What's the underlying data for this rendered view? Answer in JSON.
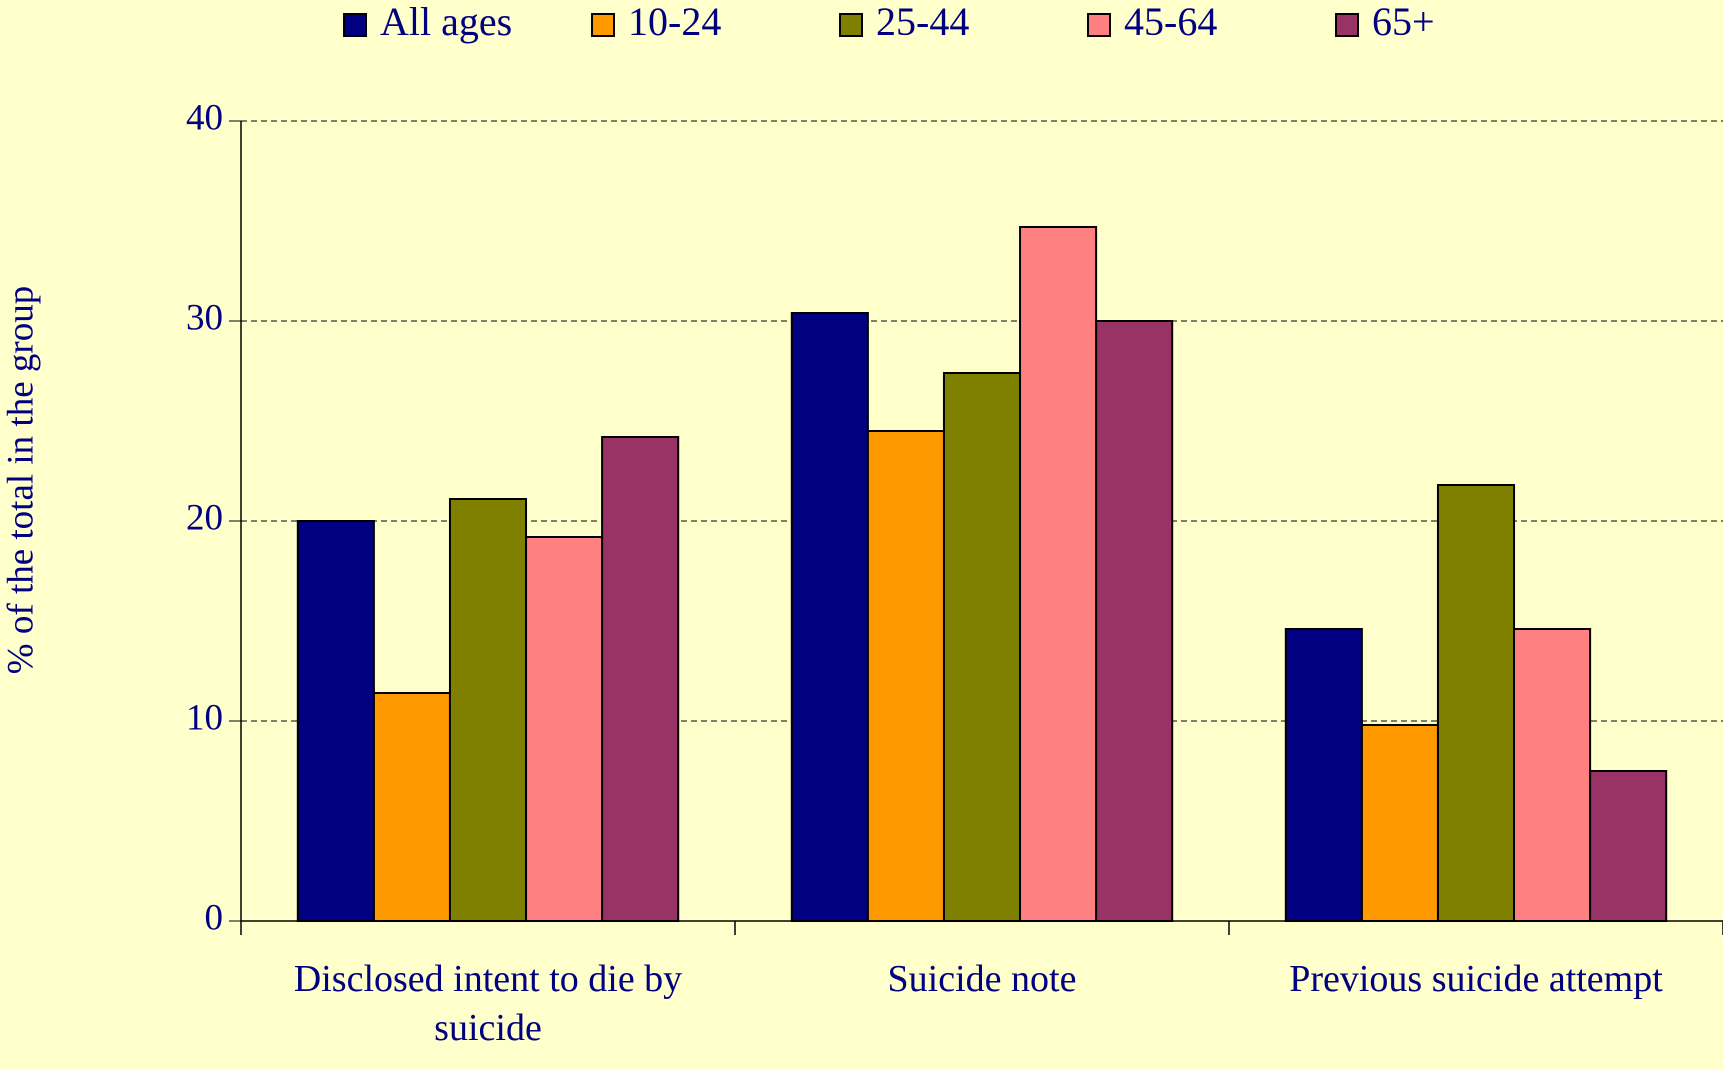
{
  "chart_data": {
    "type": "bar",
    "y_label": "% of the total in the group",
    "categories": [
      "Disclosed intent to die by suicide",
      "Suicide note",
      "Previous suicide attempt"
    ],
    "series": [
      {
        "name": "All ages",
        "color": "#000080",
        "values": [
          20,
          30.4,
          14.6
        ]
      },
      {
        "name": "10-24",
        "color": "#ff9900",
        "values": [
          11.4,
          24.5,
          9.8
        ]
      },
      {
        "name": "25-44",
        "color": "#808000",
        "values": [
          21.1,
          27.4,
          21.8
        ]
      },
      {
        "name": "45-64",
        "color": "#ff8080",
        "values": [
          19.2,
          34.7,
          14.6
        ]
      },
      {
        "name": "65+",
        "color": "#993366",
        "values": [
          24.2,
          30,
          7.5
        ]
      }
    ],
    "ylim": [
      0,
      40
    ],
    "yticks": [
      0,
      10,
      20,
      30,
      40
    ],
    "grid": true,
    "legend": "top"
  }
}
